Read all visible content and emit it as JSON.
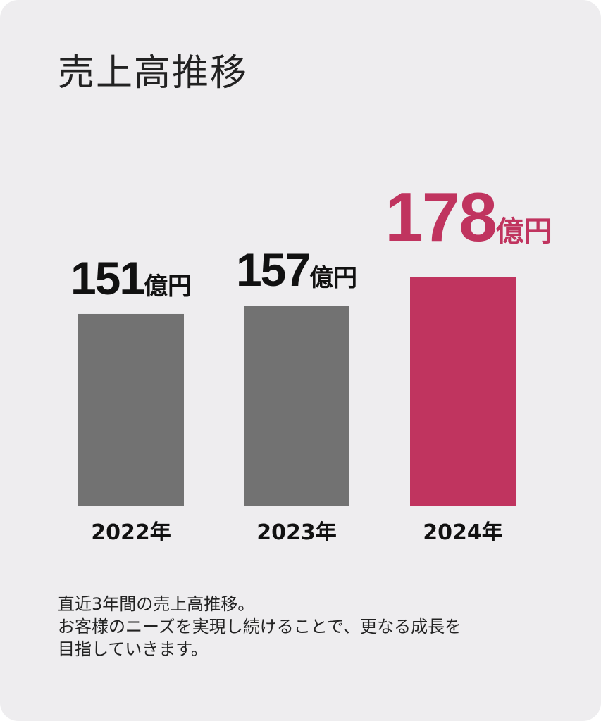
{
  "title": "売上高推移",
  "unit": "億円",
  "colors": {
    "default_bar": "#727272",
    "highlight_bar": "#c0345f",
    "default_text": "#111111",
    "highlight_text": "#c0345f",
    "background": "#eeedef"
  },
  "chart_data": {
    "type": "bar",
    "title": "売上高推移",
    "categories": [
      "2022年",
      "2023年",
      "2024年"
    ],
    "values": [
      151,
      157,
      178
    ],
    "value_labels": [
      "151",
      "157",
      "178"
    ],
    "unit": "億円",
    "highlight_index": 2,
    "xlabel": "",
    "ylabel": "",
    "grid": false
  },
  "description": [
    "直近3年間の売上高推移。",
    "お客様のニーズを実現し続けることで、更なる成長を",
    "目指していきます。"
  ]
}
